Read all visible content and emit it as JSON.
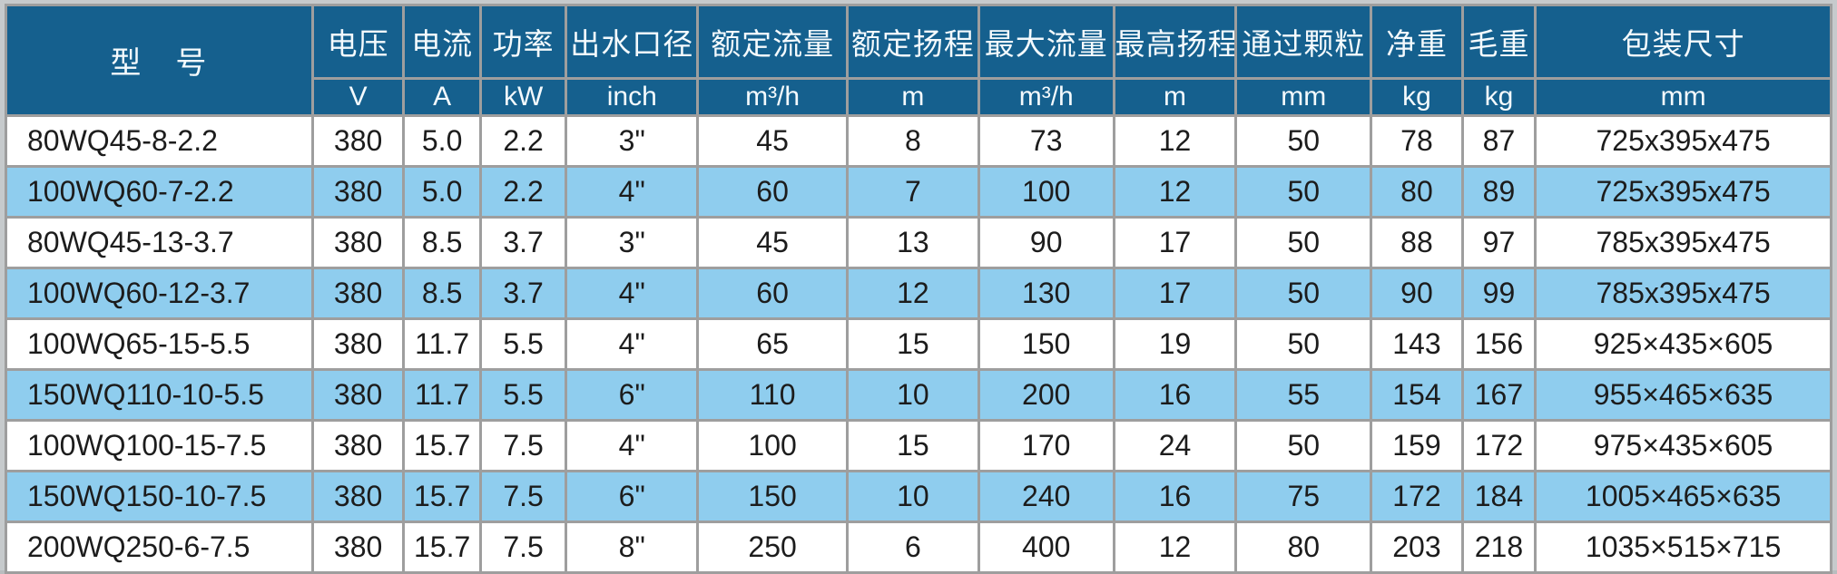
{
  "chart_data": {
    "type": "table",
    "title": "",
    "columns": [
      "型　号",
      "电压",
      "电流",
      "功率",
      "出水口径",
      "额定流量",
      "额定扬程",
      "最大流量",
      "最高扬程",
      "通过颗粒",
      "净重",
      "毛重",
      "包装尺寸"
    ],
    "units": [
      "",
      "V",
      "A",
      "kW",
      "inch",
      "m³/h",
      "m",
      "m³/h",
      "m",
      "mm",
      "kg",
      "kg",
      "mm"
    ],
    "rows": [
      [
        "80WQ45-8-2.2",
        "380",
        "5.0",
        "2.2",
        "3\"",
        "45",
        "8",
        "73",
        "12",
        "50",
        "78",
        "87",
        "725x395x475"
      ],
      [
        "100WQ60-7-2.2",
        "380",
        "5.0",
        "2.2",
        "4\"",
        "60",
        "7",
        "100",
        "12",
        "50",
        "80",
        "89",
        "725x395x475"
      ],
      [
        "80WQ45-13-3.7",
        "380",
        "8.5",
        "3.7",
        "3\"",
        "45",
        "13",
        "90",
        "17",
        "50",
        "88",
        "97",
        "785x395x475"
      ],
      [
        "100WQ60-12-3.7",
        "380",
        "8.5",
        "3.7",
        "4\"",
        "60",
        "12",
        "130",
        "17",
        "50",
        "90",
        "99",
        "785x395x475"
      ],
      [
        "100WQ65-15-5.5",
        "380",
        "11.7",
        "5.5",
        "4\"",
        "65",
        "15",
        "150",
        "19",
        "50",
        "143",
        "156",
        "925×435×605"
      ],
      [
        "150WQ110-10-5.5",
        "380",
        "11.7",
        "5.5",
        "6\"",
        "110",
        "10",
        "200",
        "16",
        "55",
        "154",
        "167",
        "955×465×635"
      ],
      [
        "100WQ100-15-7.5",
        "380",
        "15.7",
        "7.5",
        "4\"",
        "100",
        "15",
        "170",
        "24",
        "50",
        "159",
        "172",
        "975×435×605"
      ],
      [
        "150WQ150-10-7.5",
        "380",
        "15.7",
        "7.5",
        "6\"",
        "150",
        "10",
        "240",
        "16",
        "75",
        "172",
        "184",
        "1005×465×635"
      ],
      [
        "200WQ250-6-7.5",
        "380",
        "15.7",
        "7.5",
        "8\"",
        "250",
        "6",
        "400",
        "12",
        "80",
        "203",
        "218",
        "1035×515×715"
      ]
    ],
    "layout": {
      "header_rows": 2,
      "row_striping": "white / light-blue alternating",
      "model_column_alignment": "left",
      "value_alignment": "center"
    }
  },
  "colors": {
    "header_bg": "#15608e",
    "header_text": "#f4fafd",
    "row_bg": "#ffffff",
    "row_alt_bg": "#8fcdee",
    "grid_line": "#9e9e9e",
    "data_text": "#1c1c1c"
  }
}
